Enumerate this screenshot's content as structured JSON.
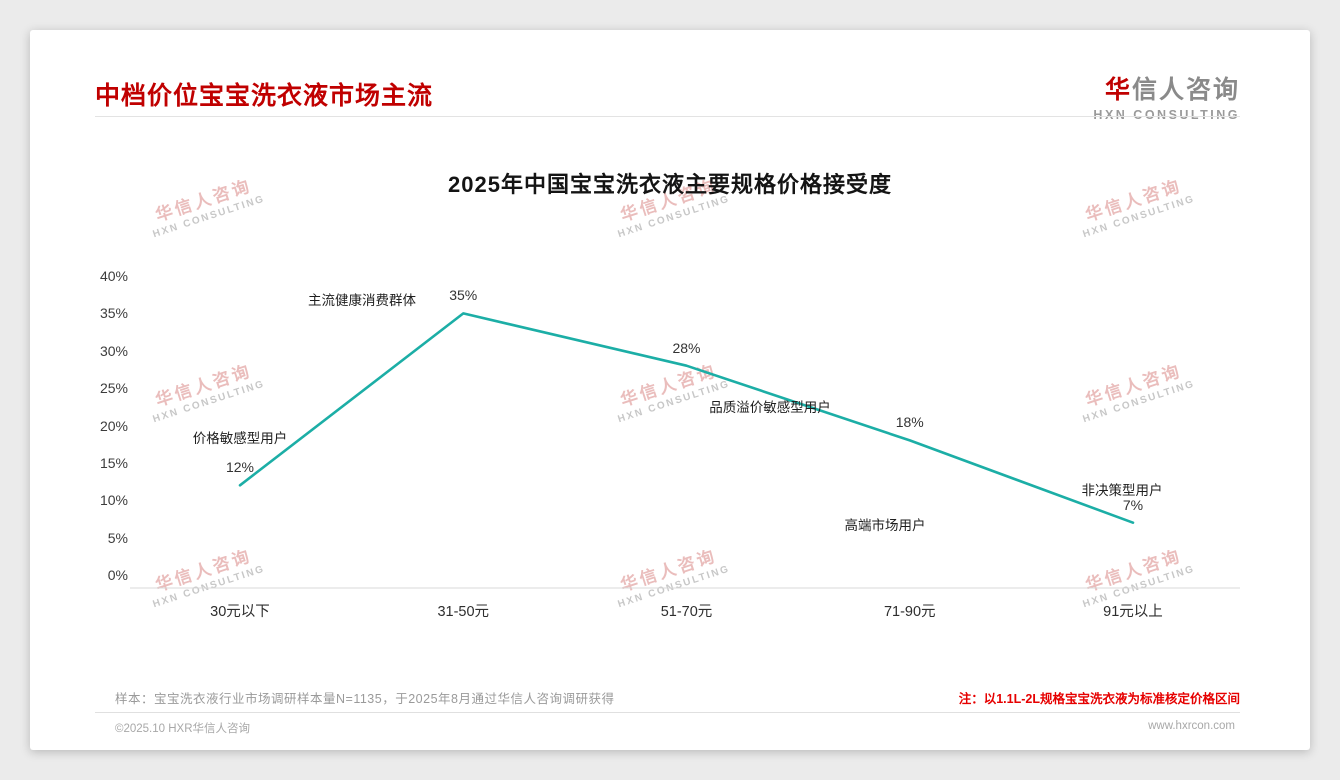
{
  "page": {
    "title": "中档价位宝宝洗衣液市场主流",
    "logo": {
      "accent": "华",
      "rest": "信人咨询",
      "sub": "HXN CONSULTING"
    },
    "watermark": {
      "line1": "华信人咨询",
      "line2": "HXN CONSULTING"
    },
    "footnote_sample": "样本：宝宝洗衣液行业市场调研样本量N=1135，于2025年8月通过华信人咨询调研获得",
    "footnote_note": "注：以1.1L-2L规格宝宝洗衣液为标准核定价格区间",
    "footer_left": "©2025.10 HXR华信人咨询",
    "footer_right": "www.hxrcon.com"
  },
  "chart_data": {
    "type": "line",
    "title": "2025年中国宝宝洗衣液主要规格价格接受度",
    "categories": [
      "30元以下",
      "31-50元",
      "51-70元",
      "71-90元",
      "91元以上"
    ],
    "values": [
      12,
      35,
      28,
      18,
      7
    ],
    "value_labels": [
      "12%",
      "35%",
      "28%",
      "18%",
      "7%"
    ],
    "annotations": [
      "价格敏感型用户",
      "主流健康消费群体",
      "品质溢价敏感型用户",
      "高端市场用户",
      "非决策型用户"
    ],
    "y_ticks": [
      "40%",
      "35%",
      "30%",
      "25%",
      "20%",
      "15%",
      "10%",
      "5%",
      "0%"
    ],
    "ylim": [
      0,
      40
    ],
    "xlabel": "",
    "ylabel": "",
    "grid": false,
    "legend": "none",
    "line_color": "#1caea6"
  }
}
